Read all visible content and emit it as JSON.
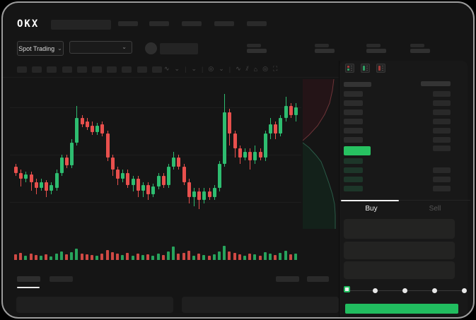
{
  "header": {
    "logo": "OKX",
    "market_selector": {
      "label": "Spot Trading",
      "chevron": "⌄"
    },
    "pair_select_chevron": "⌄"
  },
  "toolbar": {
    "icons": [
      {
        "name": "candle-type-icon",
        "glyph": "∿"
      },
      {
        "name": "chevron-down-icon",
        "glyph": "⌄"
      },
      {
        "name": "separator",
        "glyph": "|"
      },
      {
        "name": "interval-chevron-icon",
        "glyph": "⌄"
      },
      {
        "name": "separator",
        "glyph": "|"
      },
      {
        "name": "indicators-icon",
        "glyph": "◎"
      },
      {
        "name": "chevron-down-icon",
        "glyph": "⌄"
      },
      {
        "name": "separator",
        "glyph": "|"
      },
      {
        "name": "line-tool-icon",
        "glyph": "∿"
      },
      {
        "name": "draw-tool-icon",
        "glyph": "⫽"
      },
      {
        "name": "snapshot-icon",
        "glyph": "⌂"
      },
      {
        "name": "clock-icon",
        "glyph": "◎"
      },
      {
        "name": "fullscreen-icon",
        "glyph": "⛶"
      }
    ]
  },
  "colors": {
    "up": "#2ebd70",
    "down": "#e8504d",
    "vol_up": "#27a35c",
    "vol_down": "#cf4944",
    "book_price_bg": "#27c261",
    "bid_row_tint": "#1d3629",
    "book_gray_row": "#2c2c2c",
    "submit_green": "#21bd5f"
  },
  "chart_data": {
    "type": "candlestick",
    "title": "",
    "price_scale": [
      0,
      100
    ],
    "candles": [
      [
        46,
        48,
        40,
        42
      ],
      [
        42,
        44,
        33,
        38
      ],
      [
        38,
        43,
        36,
        41
      ],
      [
        41,
        43,
        30,
        36
      ],
      [
        36,
        38,
        28,
        32
      ],
      [
        32,
        38,
        30,
        36
      ],
      [
        36,
        37,
        26,
        30
      ],
      [
        30,
        36,
        28,
        34
      ],
      [
        32,
        44,
        30,
        42
      ],
      [
        42,
        54,
        40,
        52
      ],
      [
        52,
        54,
        45,
        47
      ],
      [
        47,
        64,
        45,
        62
      ],
      [
        62,
        86,
        60,
        78
      ],
      [
        78,
        80,
        72,
        74
      ],
      [
        76,
        78,
        70,
        72
      ],
      [
        73,
        76,
        67,
        69
      ],
      [
        69,
        75,
        67,
        73
      ],
      [
        74,
        76,
        66,
        68
      ],
      [
        68,
        70,
        50,
        52
      ],
      [
        52,
        54,
        40,
        44
      ],
      [
        44,
        46,
        34,
        38
      ],
      [
        38,
        44,
        36,
        42
      ],
      [
        42,
        44,
        32,
        34
      ],
      [
        34,
        40,
        30,
        38
      ],
      [
        38,
        40,
        26,
        30
      ],
      [
        30,
        36,
        26,
        34
      ],
      [
        34,
        36,
        24,
        28
      ],
      [
        28,
        35,
        26,
        33
      ],
      [
        33,
        42,
        31,
        40
      ],
      [
        40,
        42,
        32,
        34
      ],
      [
        34,
        48,
        32,
        46
      ],
      [
        46,
        56,
        44,
        52
      ],
      [
        52,
        54,
        44,
        46
      ],
      [
        46,
        48,
        34,
        36
      ],
      [
        36,
        38,
        22,
        26
      ],
      [
        26,
        32,
        20,
        30
      ],
      [
        30,
        32,
        18,
        24
      ],
      [
        24,
        32,
        22,
        30
      ],
      [
        30,
        32,
        24,
        26
      ],
      [
        26,
        34,
        24,
        32
      ],
      [
        32,
        50,
        30,
        48
      ],
      [
        48,
        94,
        46,
        82
      ],
      [
        82,
        84,
        60,
        68
      ],
      [
        68,
        70,
        52,
        58
      ],
      [
        58,
        60,
        48,
        52
      ],
      [
        52,
        58,
        50,
        56
      ],
      [
        56,
        58,
        44,
        50
      ],
      [
        50,
        60,
        48,
        56
      ],
      [
        56,
        58,
        50,
        52
      ],
      [
        52,
        70,
        50,
        68
      ],
      [
        68,
        78,
        64,
        74
      ],
      [
        74,
        76,
        64,
        68
      ],
      [
        68,
        80,
        66,
        78
      ],
      [
        78,
        92,
        76,
        86
      ],
      [
        86,
        88,
        78,
        80
      ],
      [
        80,
        88,
        76,
        85
      ]
    ],
    "volumes": [
      8,
      10,
      6,
      9,
      7,
      6,
      8,
      5,
      9,
      12,
      8,
      11,
      16,
      9,
      8,
      7,
      6,
      9,
      14,
      11,
      9,
      7,
      10,
      6,
      9,
      7,
      8,
      6,
      9,
      7,
      12,
      19,
      9,
      10,
      13,
      6,
      9,
      7,
      6,
      8,
      12,
      20,
      12,
      10,
      8,
      6,
      9,
      8,
      6,
      11,
      9,
      7,
      10,
      13,
      8,
      9
    ]
  },
  "depth": {
    "ask_fill": "0,0 44,0 42,16 38,34 31,50 21,66 9,79 0,87",
    "ask_line": "44,0 42,16 38,34 31,50 21,66 9,79 0,87",
    "bid_fill": "0,90 9,97 19,108 26,117 31,130 37,147 42,163 45,177 46,192 46,212 0,212",
    "bid_line": "0,90 9,97 19,108 26,117 31,130 37,147 42,163 45,177 46,192 46,212",
    "ask_fill_color": "#241417",
    "ask_line_color": "#6e3438",
    "bid_fill_color": "#13211a",
    "bid_line_color": "#2a5a47"
  },
  "orderbook": {
    "mode_icons": [
      "book-mode-combined-icon",
      "book-mode-bids-icon",
      "book-mode-asks-icon"
    ],
    "ask_rows": 6,
    "bid_rows": 4,
    "bid_right_bars": [
      false,
      true,
      true,
      true
    ],
    "price_direction": "up"
  },
  "trade_panel": {
    "tabs": [
      {
        "label": "Buy",
        "active": true
      },
      {
        "label": "Sell",
        "active": false
      }
    ],
    "fields": 3,
    "slider": {
      "stops": [
        0,
        25,
        50,
        75,
        100
      ],
      "value": 0
    }
  }
}
